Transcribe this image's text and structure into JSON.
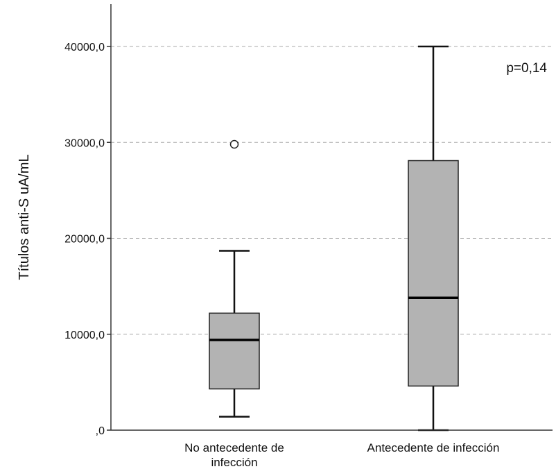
{
  "chart_data": {
    "type": "boxplot",
    "ylabel": "Títulos anti-S uA/mL",
    "ylim": [
      0,
      44000
    ],
    "yticks": [
      {
        "value": 0,
        "label": ",0"
      },
      {
        "value": 10000,
        "label": "10000,0"
      },
      {
        "value": 20000,
        "label": "20000,0"
      },
      {
        "value": 30000,
        "label": "30000,0"
      },
      {
        "value": 40000,
        "label": "40000,0"
      }
    ],
    "grid": "horizontal dashed",
    "annotation": "p=0,14",
    "box_fill": "#b3b3b3",
    "categories": [
      {
        "label_lines": [
          "No antecedente de",
          "infección"
        ],
        "whisker_low": 1400,
        "q1": 4300,
        "median": 9400,
        "q3": 12200,
        "whisker_high": 18700,
        "outliers": [
          29800
        ]
      },
      {
        "label_lines": [
          "Antecedente de infección"
        ],
        "whisker_low": 0,
        "q1": 4600,
        "median": 13800,
        "q3": 28100,
        "whisker_high": 40000,
        "outliers": []
      }
    ]
  }
}
